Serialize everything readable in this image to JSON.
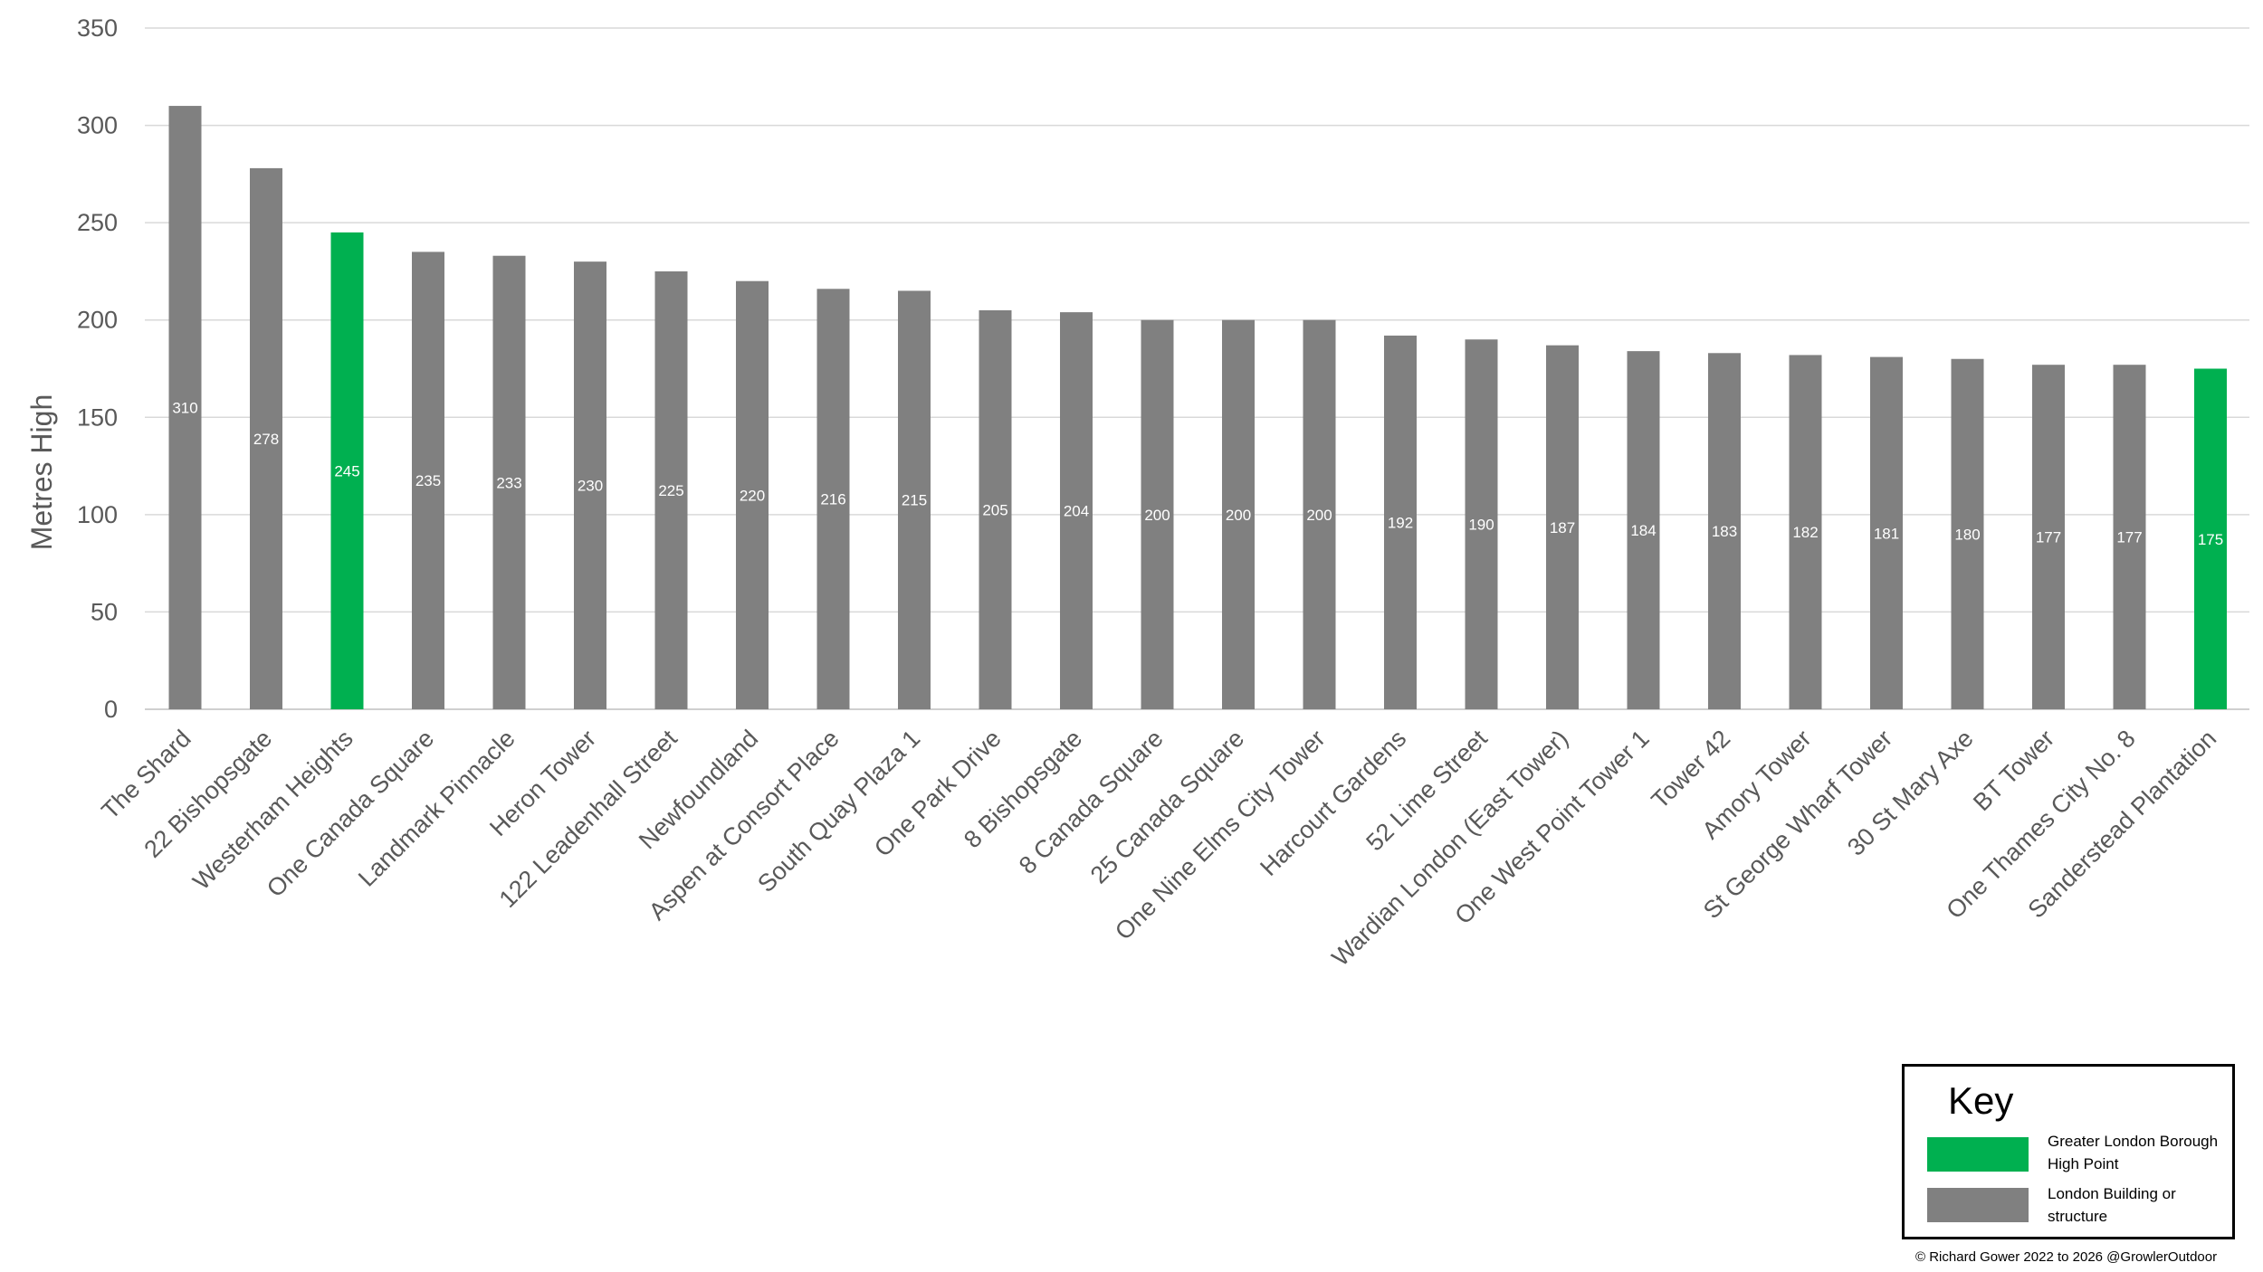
{
  "chart_data": {
    "type": "bar",
    "ylabel": "Metres High",
    "ylim": [
      0,
      350
    ],
    "yticks": [
      0,
      50,
      100,
      150,
      200,
      250,
      300,
      350
    ],
    "grid": true,
    "categories": [
      "The Shard",
      "22 Bishopsgate",
      "Westerham Heights",
      "One Canada Square",
      "Landmark Pinnacle",
      "Heron Tower",
      "122 Leadenhall Street",
      "Newfoundland",
      "Aspen at Consort Place",
      "South Quay Plaza 1",
      "One Park Drive",
      "8 Bishopsgate",
      "8 Canada Square",
      "25 Canada Square",
      "One Nine Elms City Tower",
      "Harcourt Gardens",
      "52 Lime Street",
      "Wardian London (East Tower)",
      "One West Point Tower 1",
      "Tower 42",
      "Amory Tower",
      "St George Wharf Tower",
      "30 St Mary Axe",
      "BT Tower",
      "One Thames City No. 8",
      "Sanderstead Plantation"
    ],
    "values": [
      310,
      278,
      245,
      235,
      233,
      230,
      225,
      220,
      216,
      215,
      205,
      204,
      200,
      200,
      200,
      192,
      190,
      187,
      184,
      183,
      182,
      181,
      180,
      177,
      177,
      175
    ],
    "bar_groups": [
      "london",
      "london",
      "borough",
      "london",
      "london",
      "london",
      "london",
      "london",
      "london",
      "london",
      "london",
      "london",
      "london",
      "london",
      "london",
      "london",
      "london",
      "london",
      "london",
      "london",
      "london",
      "london",
      "london",
      "london",
      "london",
      "borough"
    ],
    "colors": {
      "borough": "#00b050",
      "london": "#808080"
    }
  },
  "legend": {
    "title": "Key",
    "items": [
      {
        "label": "Greater London Borough High Point",
        "color": "#00b050"
      },
      {
        "label": "London Building or structure",
        "color": "#808080"
      }
    ]
  },
  "footer": {
    "copyright": "© Richard Gower 2022 to 2026 @GrowlerOutdoor"
  }
}
